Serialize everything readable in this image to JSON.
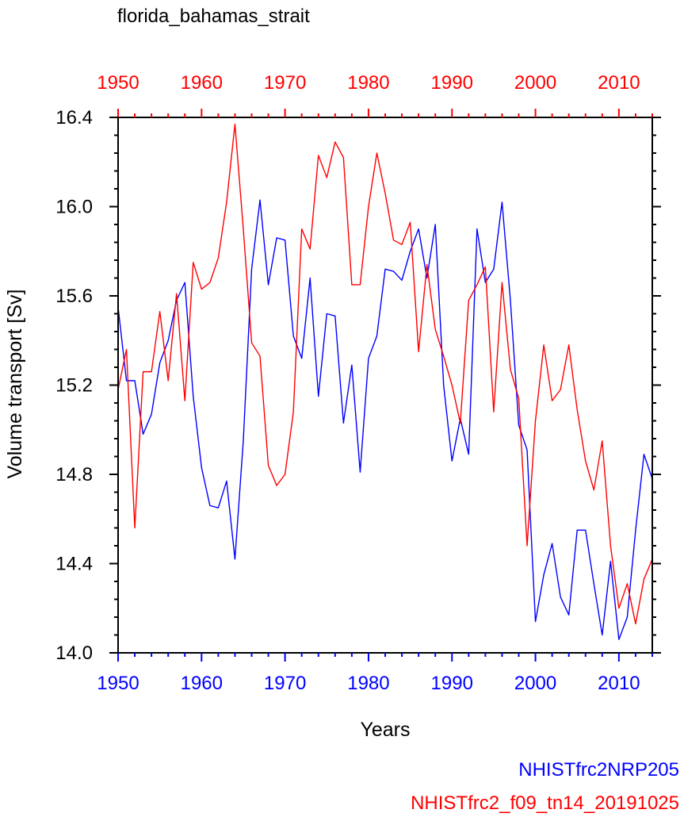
{
  "chart_data": {
    "type": "line",
    "title": "florida_bahamas_strait",
    "xlabel": "Years",
    "ylabel": "Volume transport [Sv]",
    "xlim": [
      1950,
      2014
    ],
    "ylim": [
      14.0,
      16.4
    ],
    "x_ticks": [
      1950,
      1960,
      1970,
      1980,
      1990,
      2000,
      2010
    ],
    "x_tick_labels": [
      "1950",
      "1960",
      "1970",
      "1980",
      "1990",
      "2000",
      "2010"
    ],
    "y_ticks": [
      14.0,
      14.4,
      14.8,
      15.2,
      15.6,
      16.0,
      16.4
    ],
    "y_tick_labels": [
      "14.0",
      "14.4",
      "14.8",
      "15.2",
      "15.6",
      "16.0",
      "16.4"
    ],
    "x": [
      1950,
      1951,
      1952,
      1953,
      1954,
      1955,
      1956,
      1957,
      1958,
      1959,
      1960,
      1961,
      1962,
      1963,
      1964,
      1965,
      1966,
      1967,
      1968,
      1969,
      1970,
      1971,
      1972,
      1973,
      1974,
      1975,
      1976,
      1977,
      1978,
      1979,
      1980,
      1981,
      1982,
      1983,
      1984,
      1985,
      1986,
      1987,
      1988,
      1989,
      1990,
      1991,
      1992,
      1993,
      1994,
      1995,
      1996,
      1997,
      1998,
      1999,
      2000,
      2001,
      2002,
      2003,
      2004,
      2005,
      2006,
      2007,
      2008,
      2009,
      2010,
      2011,
      2012,
      2013,
      2014
    ],
    "series": [
      {
        "name": "NHISTfrc2NRP205",
        "color": "#0000ff",
        "values": [
          15.55,
          15.22,
          15.22,
          14.98,
          15.07,
          15.3,
          15.4,
          15.58,
          15.66,
          15.15,
          14.83,
          14.66,
          14.65,
          14.77,
          14.42,
          14.95,
          15.72,
          16.03,
          15.65,
          15.86,
          15.85,
          15.42,
          15.32,
          15.68,
          15.15,
          15.52,
          15.51,
          15.03,
          15.29,
          14.81,
          15.32,
          15.42,
          15.72,
          15.71,
          15.67,
          15.8,
          15.9,
          15.68,
          15.92,
          15.2,
          14.86,
          15.05,
          14.89,
          15.9,
          15.66,
          15.72,
          16.02,
          15.58,
          15.02,
          14.91,
          14.14,
          14.35,
          14.49,
          14.25,
          14.17,
          14.55,
          14.55,
          14.31,
          14.08,
          14.41,
          14.06,
          14.16,
          14.55,
          14.89,
          14.78
        ]
      },
      {
        "name": "NHISTfrc2_f09_tn14_20191025",
        "color": "#ff0000",
        "values": [
          15.18,
          15.36,
          14.56,
          15.26,
          15.26,
          15.53,
          15.22,
          15.61,
          15.13,
          15.75,
          15.63,
          15.66,
          15.77,
          16.02,
          16.37,
          15.9,
          15.39,
          15.33,
          14.84,
          14.75,
          14.8,
          15.08,
          15.9,
          15.81,
          16.23,
          16.13,
          16.29,
          16.22,
          15.65,
          15.65,
          16.0,
          16.24,
          16.06,
          15.85,
          15.83,
          15.93,
          15.35,
          15.74,
          15.45,
          15.33,
          15.2,
          15.03,
          15.58,
          15.65,
          15.73,
          15.08,
          15.66,
          15.27,
          15.14,
          14.48,
          15.04,
          15.38,
          15.13,
          15.18,
          15.38,
          15.09,
          14.86,
          14.73,
          14.95,
          14.48,
          14.2,
          14.31,
          14.13,
          14.33,
          14.42
        ]
      }
    ],
    "legend": [
      "NHISTfrc2NRP205",
      "NHISTfrc2_f09_tn14_20191025"
    ],
    "legend_position": "bottom-right",
    "grid": false
  }
}
